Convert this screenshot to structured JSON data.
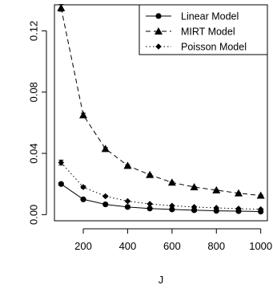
{
  "chart_data": {
    "type": "line",
    "title": "",
    "xlabel": "J",
    "ylabel": "",
    "xlim": [
      70,
      1030
    ],
    "ylim": [
      -0.004,
      0.137
    ],
    "xticks": [
      200,
      400,
      600,
      800,
      1000
    ],
    "xtick_labels": [
      "200",
      "400",
      "600",
      "800",
      "1000"
    ],
    "yticks": [
      0.0,
      0.04,
      0.08,
      0.12
    ],
    "ytick_labels": [
      "0.00",
      "0.04",
      "0.08",
      "0.12"
    ],
    "grid": false,
    "legend_position": "top-right",
    "x": [
      100,
      200,
      300,
      400,
      500,
      600,
      700,
      800,
      900,
      1000
    ],
    "series": [
      {
        "name": "Linear Model",
        "line_style": "solid",
        "marker": "circle",
        "values": [
          0.02,
          0.01,
          0.0067,
          0.005,
          0.004,
          0.0034,
          0.0029,
          0.0025,
          0.0023,
          0.002
        ],
        "error": [
          0.0007,
          0.0004,
          0.0003,
          0.0002,
          0.0002,
          0.0002,
          0.0001,
          0.0001,
          0.0001,
          0.0001
        ]
      },
      {
        "name": "MIRT Model",
        "line_style": "dashed",
        "marker": "triangle",
        "values": [
          0.135,
          0.065,
          0.043,
          0.032,
          0.026,
          0.021,
          0.018,
          0.016,
          0.014,
          0.0125
        ],
        "error": [
          0.0022,
          0.0012,
          0.0008,
          0.0006,
          0.0005,
          0.0004,
          0.0004,
          0.0003,
          0.0003,
          0.0003
        ]
      },
      {
        "name": "Poisson Model",
        "line_style": "dotted",
        "marker": "diamond",
        "values": [
          0.034,
          0.018,
          0.012,
          0.0088,
          0.007,
          0.0058,
          0.005,
          0.0044,
          0.0039,
          0.0035
        ],
        "error": [
          0.0016,
          0.0008,
          0.0005,
          0.0004,
          0.0003,
          0.0003,
          0.0002,
          0.0002,
          0.0002,
          0.0002
        ]
      }
    ]
  }
}
